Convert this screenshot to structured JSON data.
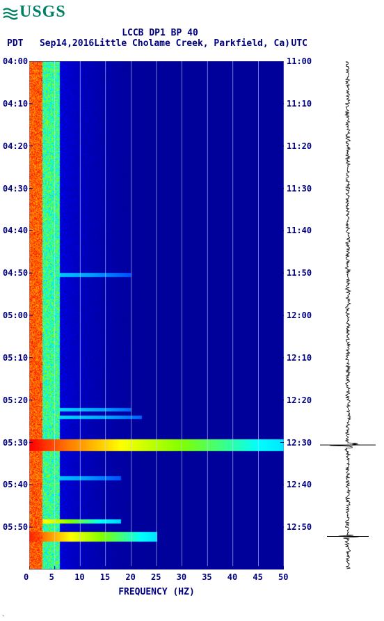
{
  "logo": {
    "text": "USGS"
  },
  "title": "LCCB DP1 BP 40",
  "pdt_label": "PDT",
  "date_text": "Sep14,2016",
  "location": "Little Cholame Creek, Parkfield, Ca)",
  "utc_label": "UTC",
  "xlabel": "FREQUENCY (HZ)",
  "colors": {
    "textColor": "#000080",
    "logoColor": "#008066",
    "background": "#ffffff",
    "gridColor": "#c0d0ff"
  },
  "xaxis": {
    "min": 0,
    "max": 50,
    "ticks": [
      0,
      5,
      10,
      15,
      20,
      25,
      30,
      35,
      40,
      45,
      50
    ]
  },
  "yaxis_left": {
    "ticks": [
      "04:00",
      "04:10",
      "04:20",
      "04:30",
      "04:40",
      "04:50",
      "05:00",
      "05:10",
      "05:20",
      "05:30",
      "05:40",
      "05:50"
    ]
  },
  "yaxis_right": {
    "ticks": [
      "11:00",
      "11:10",
      "11:20",
      "11:30",
      "11:40",
      "11:50",
      "12:00",
      "12:10",
      "12:20",
      "12:30",
      "12:40",
      "12:50"
    ]
  },
  "plot": {
    "widthPx": 366,
    "heightPx": 730,
    "rows": 12
  },
  "spectrogram": {
    "type": "spectrogram",
    "colormap": [
      {
        "v": 0.0,
        "c": "#00008b"
      },
      {
        "v": 0.15,
        "c": "#0000ff"
      },
      {
        "v": 0.35,
        "c": "#00a0ff"
      },
      {
        "v": 0.55,
        "c": "#00ffff"
      },
      {
        "v": 0.7,
        "c": "#80ff00"
      },
      {
        "v": 0.82,
        "c": "#ffff00"
      },
      {
        "v": 0.92,
        "c": "#ff8000"
      },
      {
        "v": 1.0,
        "c": "#ff0000"
      }
    ],
    "lowFreqBand": {
      "fStart": 0,
      "fEnd": 2.5,
      "intensityMin": 0.88,
      "intensityMax": 1.0
    },
    "midFreqBand": {
      "fStart": 2.5,
      "fEnd": 6,
      "intensityMin": 0.45,
      "intensityMax": 0.75
    },
    "decayStartHz": 6,
    "decayRate": 0.1,
    "noiseAmplitude": 0.09,
    "events": [
      {
        "tFrac": 0.755,
        "widthFrac": 0.012,
        "maxHz": 50,
        "peakIntensity": 1.0
      },
      {
        "tFrac": 0.935,
        "widthFrac": 0.01,
        "maxHz": 25,
        "peakIntensity": 0.98
      },
      {
        "tFrac": 0.905,
        "widthFrac": 0.004,
        "maxHz": 18,
        "peakIntensity": 0.9
      },
      {
        "tFrac": 0.685,
        "widthFrac": 0.004,
        "maxHz": 20,
        "peakIntensity": 0.55
      },
      {
        "tFrac": 0.7,
        "widthFrac": 0.004,
        "maxHz": 22,
        "peakIntensity": 0.55
      },
      {
        "tFrac": 0.42,
        "widthFrac": 0.004,
        "maxHz": 20,
        "peakIntensity": 0.5
      },
      {
        "tFrac": 0.82,
        "widthFrac": 0.004,
        "maxHz": 18,
        "peakIntensity": 0.5
      }
    ]
  },
  "seismogram": {
    "baseAmplitude": 3.0,
    "noise": 2.0,
    "spikes": [
      {
        "tFrac": 0.755,
        "amp": 40
      },
      {
        "tFrac": 0.935,
        "amp": 30
      }
    ],
    "color": "#000000"
  },
  "footnote": "-"
}
